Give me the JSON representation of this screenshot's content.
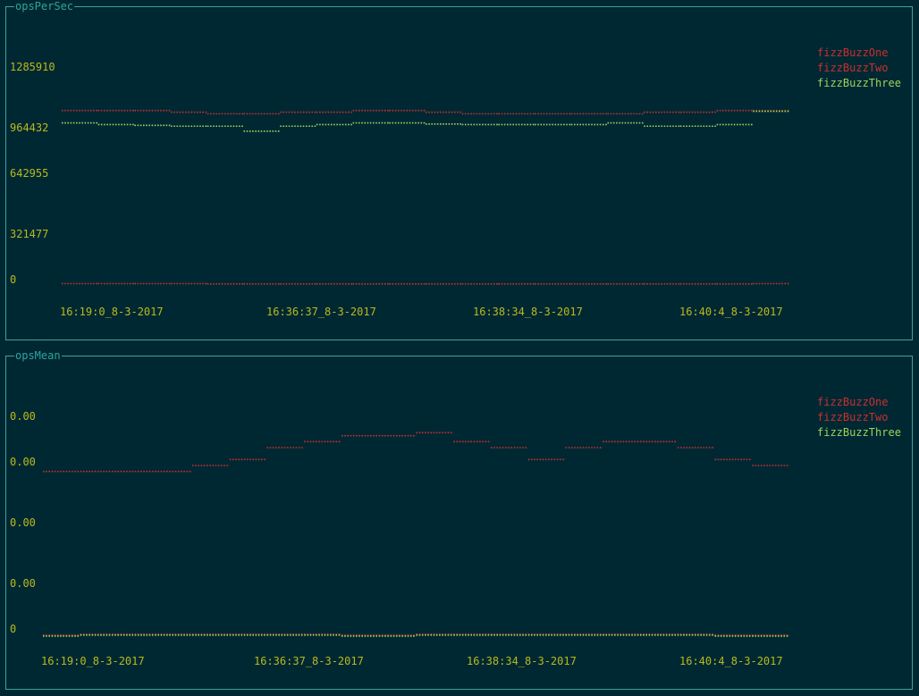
{
  "colors": {
    "background": "#002833",
    "border": "#3aa3a0",
    "title": "#2fa39c",
    "axis_text": "#b8ba1a",
    "series_red": "#c83030",
    "series_green": "#9ed45a"
  },
  "chart_data": [
    {
      "type": "line",
      "title": "opsPerSec",
      "ylim": [
        0,
        1285910
      ],
      "y_ticks": [
        "1285910",
        "964432",
        "642955",
        "321477",
        "0"
      ],
      "x_ticks": [
        "16:19:0_8-3-2017",
        "16:36:37_8-3-2017",
        "16:38:34_8-3-2017",
        "16:40:4_8-3-2017"
      ],
      "legend_position": "top-right",
      "series": [
        {
          "name": "fizzBuzzOne",
          "color": "#c83030",
          "values": [
            1050000,
            1050000,
            1050000,
            1040000,
            1030000,
            1030000,
            1040000,
            1040000,
            1050000,
            1050000,
            1040000,
            1030000,
            1030000,
            1030000,
            1030000,
            1030000,
            1040000,
            1040000,
            1050000,
            1050000
          ]
        },
        {
          "name": "fizzBuzzTwo",
          "color": "#c83030",
          "values": [
            3000,
            3000,
            3000,
            3000,
            1000,
            1000,
            1000,
            1000,
            1000,
            1000,
            1000,
            1000,
            1000,
            1000,
            1000,
            1000,
            1000,
            1000,
            1000,
            3000
          ]
        },
        {
          "name": "fizzBuzzThree",
          "color": "#9ed45a",
          "values": [
            975000,
            965000,
            960000,
            955000,
            955000,
            925000,
            955000,
            965000,
            975000,
            975000,
            968000,
            965000,
            965000,
            965000,
            965000,
            975000,
            955000,
            955000,
            965000,
            1045000
          ]
        }
      ]
    },
    {
      "type": "line",
      "title": "opsMean",
      "y_ticks": [
        "0.00",
        "0.00",
        "0.00",
        "0.00",
        "0"
      ],
      "x_ticks": [
        "16:19:0_8-3-2017",
        "16:36:37_8-3-2017",
        "16:38:34_8-3-2017",
        "16:40:4_8-3-2017"
      ],
      "legend_position": "top-right",
      "series": [
        {
          "name": "fizzBuzzOne",
          "color": "#c83030",
          "values": [
            0.00059,
            0.00059,
            0.00059,
            0.00059,
            0.00061,
            0.00063,
            0.00067,
            0.00069,
            0.00071,
            0.00071,
            0.00072,
            0.00069,
            0.00067,
            0.00063,
            0.00067,
            0.00069,
            0.00069,
            0.00067,
            0.00063,
            0.00061
          ]
        },
        {
          "name": "fizzBuzzTwo",
          "color": "#c83030",
          "values": [
            4e-06,
            6e-06,
            6e-06,
            6e-06,
            6e-06,
            6e-06,
            6e-06,
            6e-06,
            4e-06,
            4e-06,
            6e-06,
            6e-06,
            6e-06,
            6e-06,
            6e-06,
            6e-06,
            6e-06,
            6e-06,
            4e-06,
            4e-06
          ]
        },
        {
          "name": "fizzBuzzThree",
          "color": "#9ed45a",
          "values": [
            2e-06,
            4e-06,
            4e-06,
            4e-06,
            4e-06,
            4e-06,
            4e-06,
            4e-06,
            2e-06,
            2e-06,
            4e-06,
            4e-06,
            4e-06,
            4e-06,
            4e-06,
            4e-06,
            4e-06,
            4e-06,
            2e-06,
            2e-06
          ]
        }
      ]
    }
  ]
}
